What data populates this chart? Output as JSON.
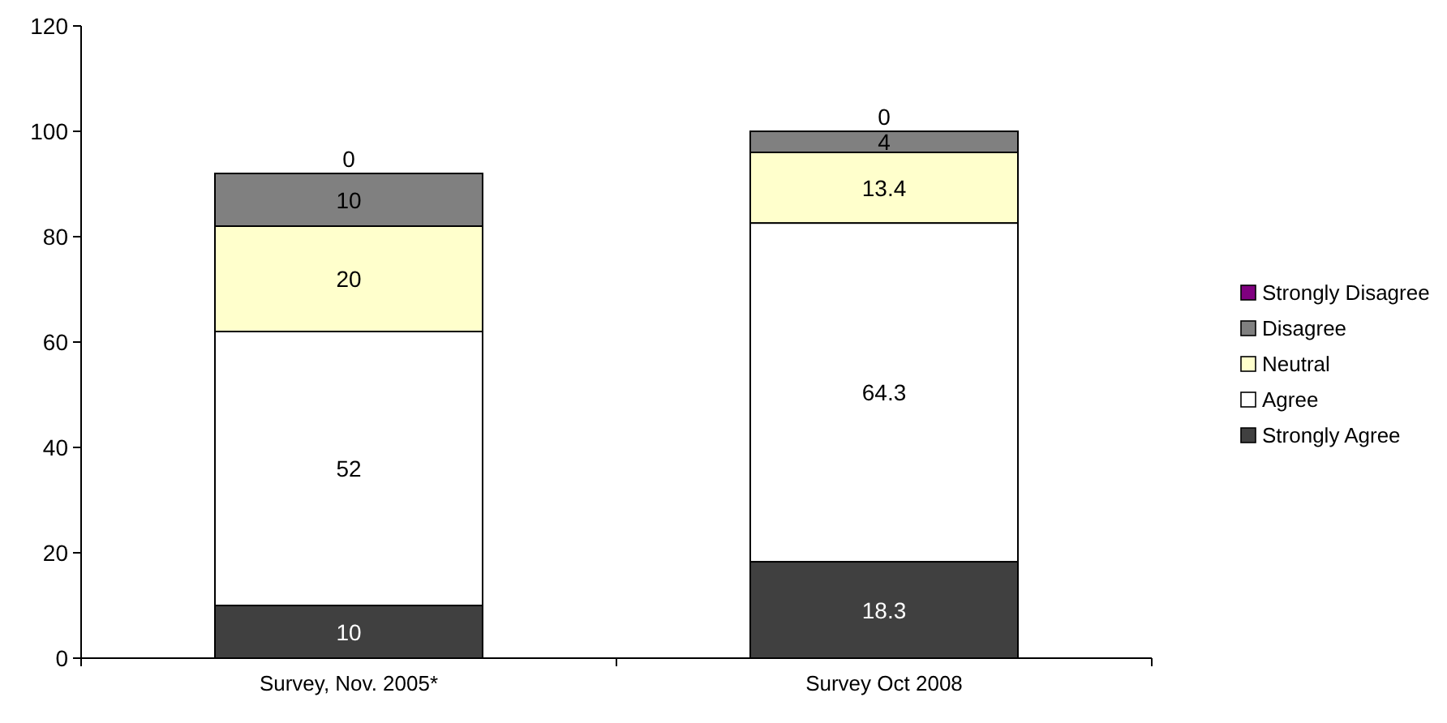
{
  "chart_data": {
    "type": "bar",
    "stacked": true,
    "categories": [
      "Survey, Nov. 2005*",
      "Survey Oct 2008"
    ],
    "series": [
      {
        "name": "Strongly Agree",
        "color": "#404040",
        "values": [
          10,
          18.3
        ]
      },
      {
        "name": "Agree",
        "color": "#ffffff",
        "values": [
          52,
          64.3
        ]
      },
      {
        "name": "Neutral",
        "color": "#ffffcc",
        "values": [
          20,
          13.4
        ]
      },
      {
        "name": "Disagree",
        "color": "#808080",
        "values": [
          10,
          4
        ]
      },
      {
        "name": "Strongly Disagree",
        "color": "#800080",
        "values": [
          0,
          0
        ]
      }
    ],
    "ylim": [
      0,
      120
    ],
    "yticks": [
      0,
      20,
      40,
      60,
      80,
      100,
      120
    ],
    "grid": false,
    "legend": "right",
    "data_labels": true
  }
}
